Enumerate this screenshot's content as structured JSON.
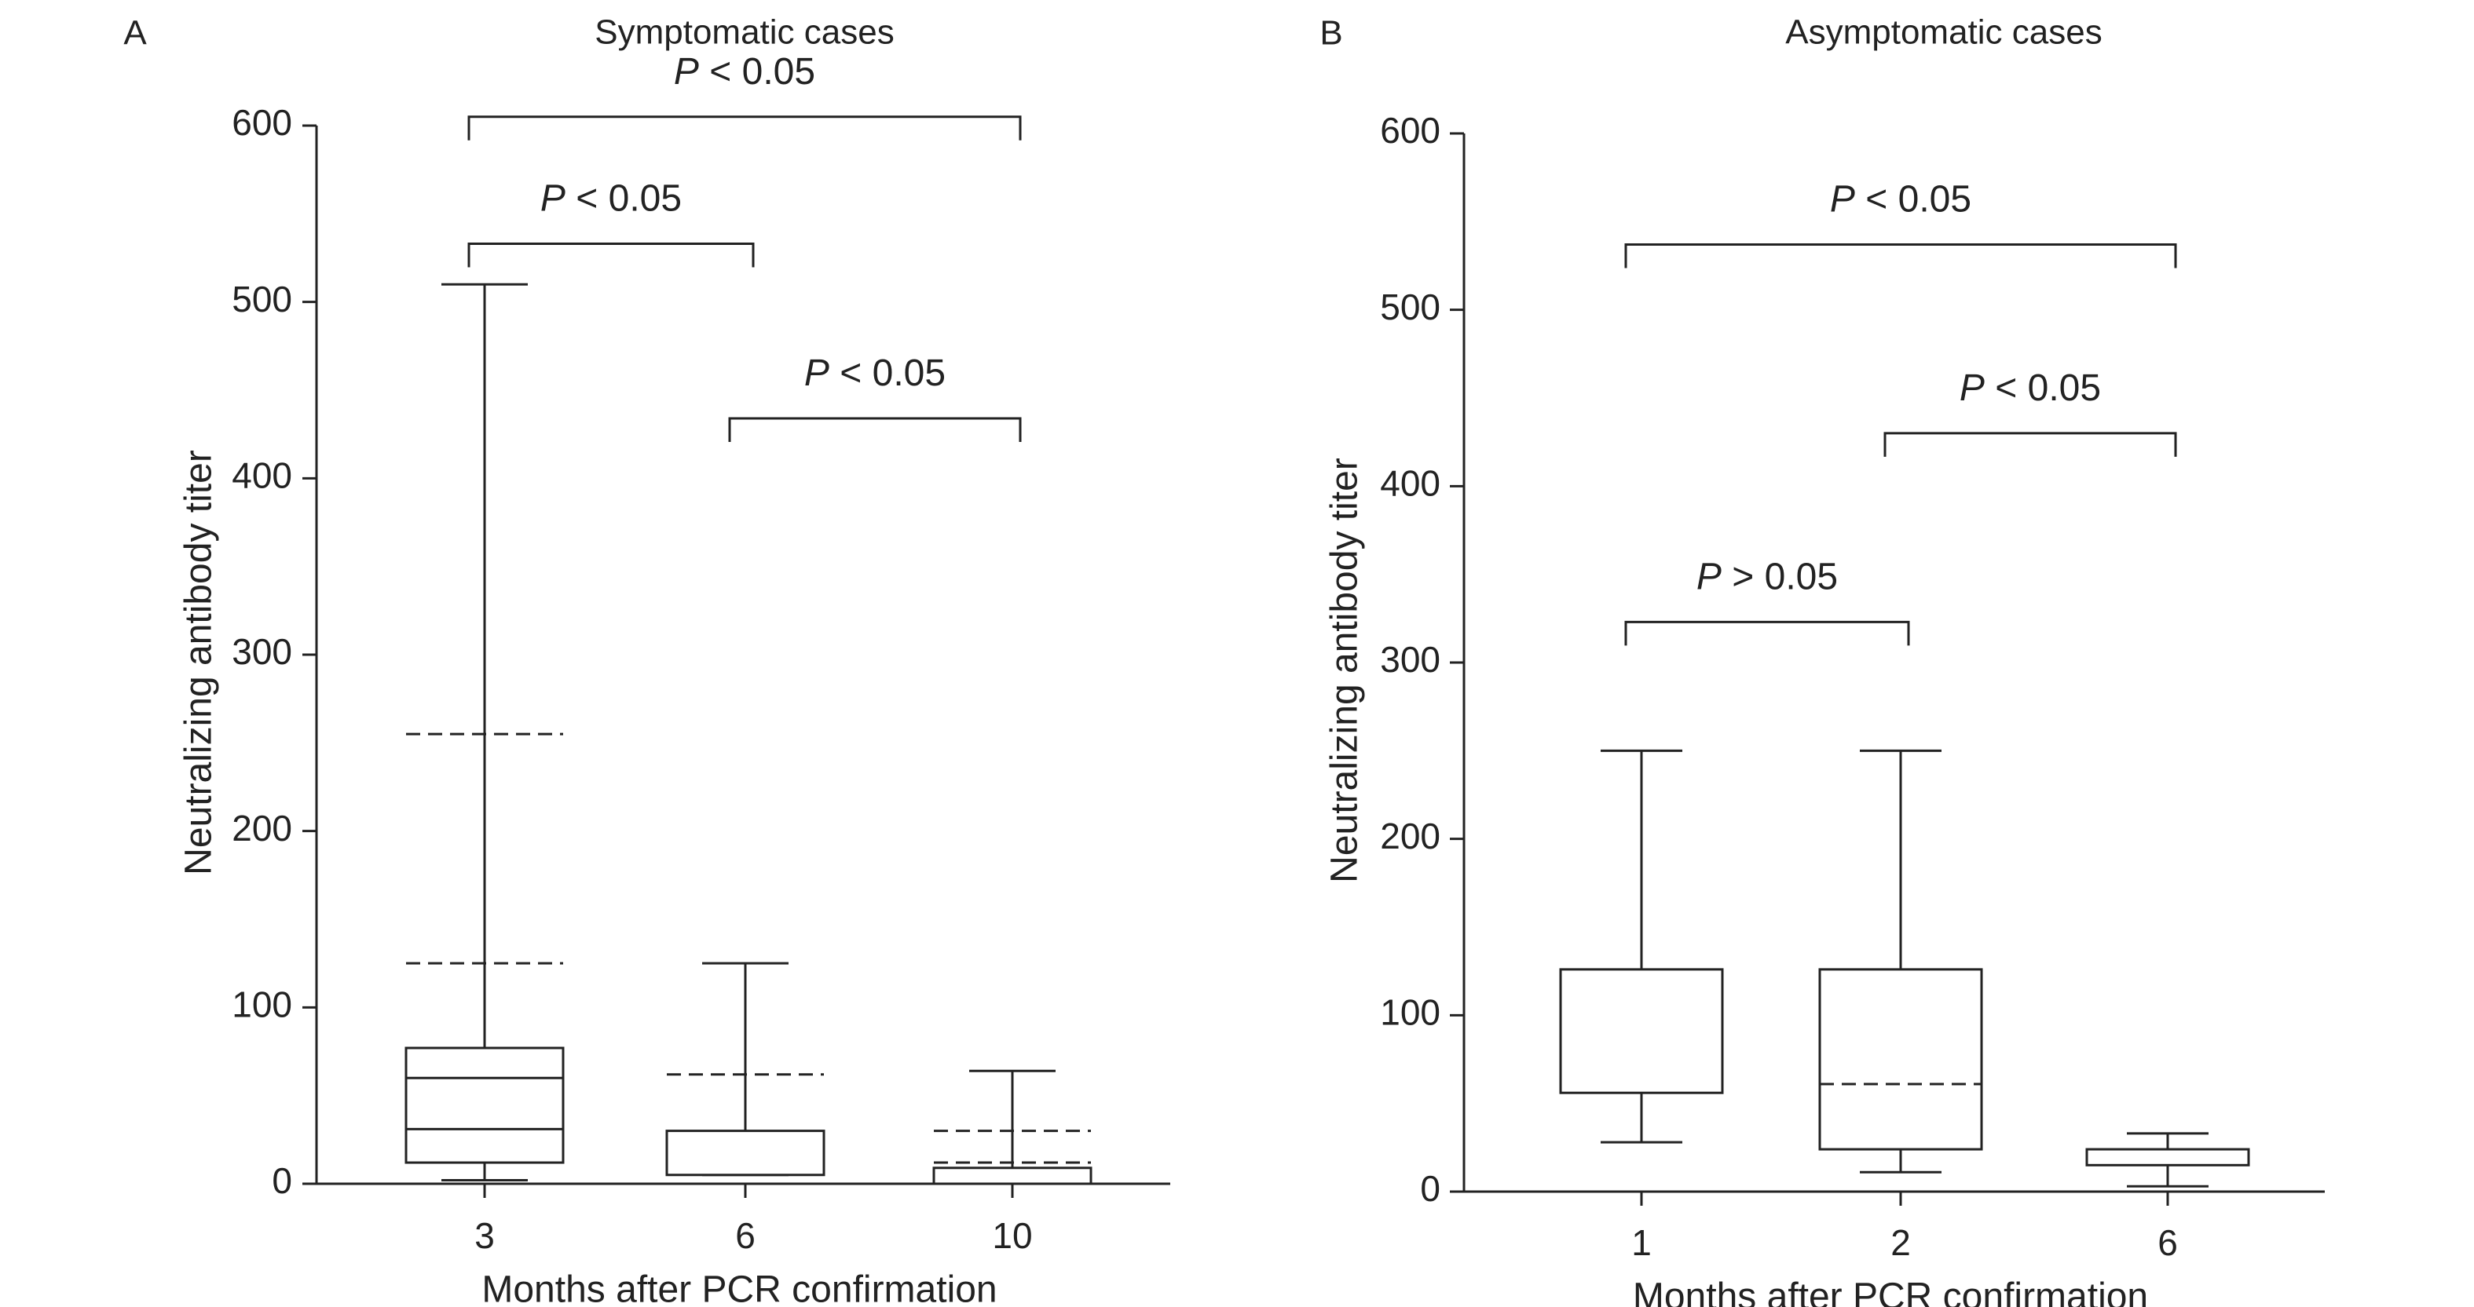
{
  "chart_data": [
    {
      "type": "box",
      "panel_label": "A",
      "title": "Symptomatic cases",
      "xlabel": "Months after PCR confirmation",
      "ylabel": "Neutralizing antibody titer",
      "ylim": [
        0,
        600
      ],
      "yticks": [
        0,
        100,
        200,
        300,
        400,
        500,
        600
      ],
      "categories": [
        "3",
        "6",
        "10"
      ],
      "boxes": [
        {
          "category": "3",
          "whisker_low": 2,
          "q1": 12,
          "q3": 77,
          "whisker_high": 510,
          "solid_lines": [
            31,
            60
          ],
          "dashed_lines": [
            125,
            255
          ]
        },
        {
          "category": "6",
          "whisker_low": 5,
          "q1": 5,
          "q3": 30,
          "whisker_high": 125,
          "solid_lines": [],
          "dashed_lines": [
            62
          ]
        },
        {
          "category": "10",
          "whisker_low": 0,
          "q1": 0,
          "q3": 9,
          "whisker_high": 64,
          "solid_lines": [],
          "dashed_lines": [
            12,
            30
          ]
        }
      ],
      "comparisons": [
        {
          "from": "3",
          "to": "10",
          "p_symbol": "P",
          "p_rest": " < 0.05",
          "y": 605
        },
        {
          "from": "3",
          "to": "6",
          "p_symbol": "P",
          "p_rest": " < 0.05",
          "y": 533
        },
        {
          "from": "6",
          "to": "10",
          "p_symbol": "P",
          "p_rest": " < 0.05",
          "y": 434
        }
      ]
    },
    {
      "type": "box",
      "panel_label": "B",
      "title": "Asymptomatic cases",
      "xlabel": "Months after PCR confirmation",
      "ylabel": "Neutralizing antibody titer",
      "ylim": [
        0,
        600
      ],
      "yticks": [
        0,
        100,
        200,
        300,
        400,
        500,
        600
      ],
      "categories": [
        "1",
        "2",
        "6"
      ],
      "boxes": [
        {
          "category": "1",
          "whisker_low": 28,
          "q1": 56,
          "q3": 126,
          "whisker_high": 250,
          "solid_lines": [],
          "dashed_lines": []
        },
        {
          "category": "2",
          "whisker_low": 11,
          "q1": 24,
          "q3": 126,
          "whisker_high": 250,
          "solid_lines": [],
          "dashed_lines": [
            61
          ]
        },
        {
          "category": "6",
          "whisker_low": 3,
          "q1": 15,
          "q3": 24,
          "whisker_high": 33,
          "solid_lines": [],
          "dashed_lines": []
        }
      ],
      "comparisons": [
        {
          "from": "1",
          "to": "6",
          "p_symbol": "P",
          "p_rest": " < 0.05",
          "y": 537
        },
        {
          "from": "2",
          "to": "6",
          "p_symbol": "P",
          "p_rest": " < 0.05",
          "y": 430
        },
        {
          "from": "1",
          "to": "2",
          "p_symbol": "P",
          "p_rest": " > 0.05",
          "y": 323
        }
      ]
    }
  ]
}
